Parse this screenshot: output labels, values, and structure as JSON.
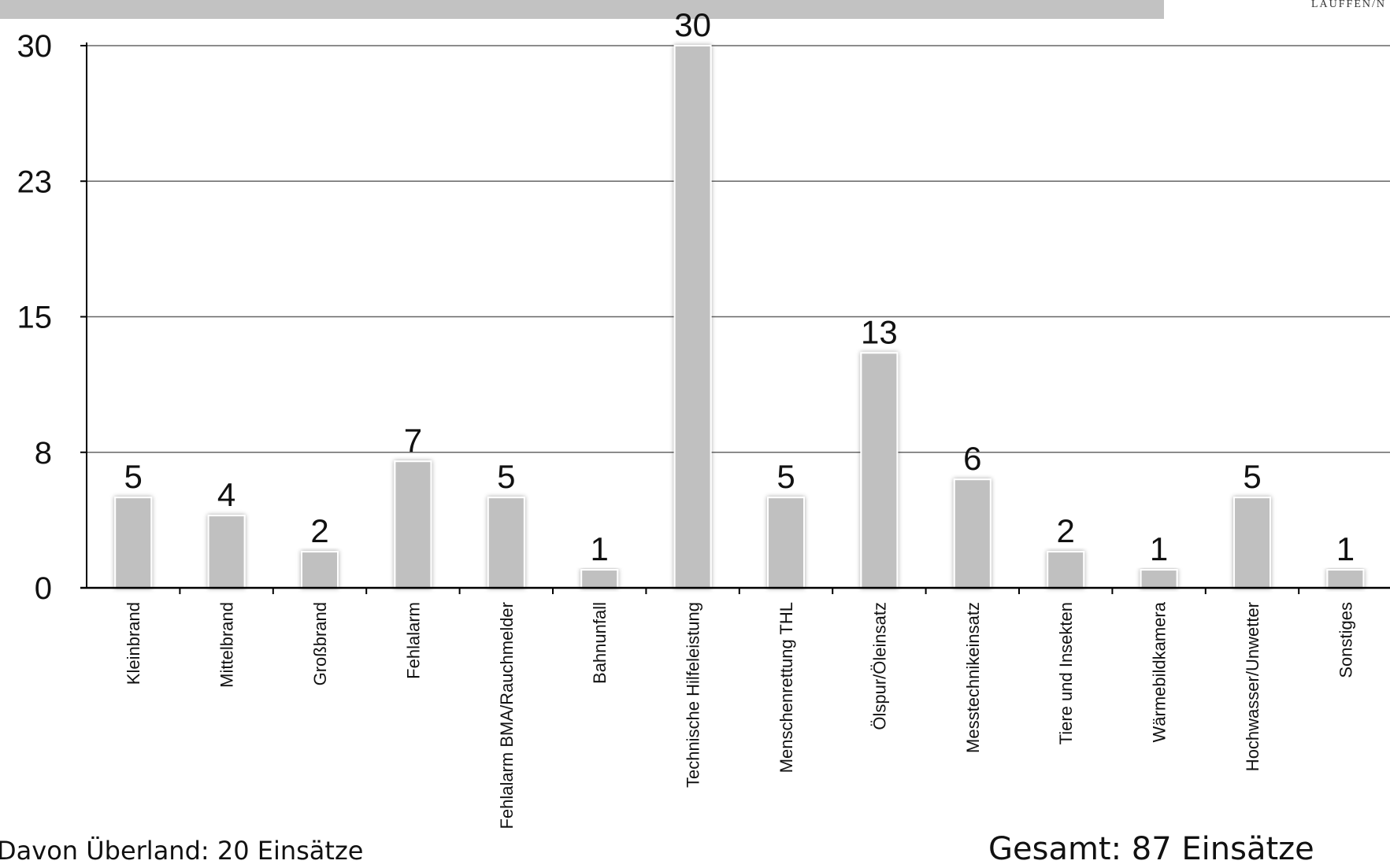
{
  "header": {
    "brand": "LAUFFEN/N"
  },
  "footer": {
    "overland": "Davon Überland: 20 Einsätze",
    "total": "Gesamt: 87 Einsätze"
  },
  "colors": {
    "bar": "#c0c0c0",
    "bar_edge": "#ffffff",
    "grid": "#666666",
    "axis": "#000000",
    "top_bar": "#c2c2c2"
  },
  "chart_data": {
    "type": "bar",
    "categories": [
      "Kleinbrand",
      "Mittelbrand",
      "Großbrand",
      "Fehlalarm",
      "Fehlalarm BMA/Rauchmelder",
      "Bahnunfall",
      "Technische Hilfeleistung",
      "Menschenrettung THL",
      "Ölspur/Öleinsatz",
      "Messtechnikeinsatz",
      "Tiere und Insekten",
      "Wärmebildkamera",
      "Hochwasser/Unwetter",
      "Sonstiges"
    ],
    "values": [
      5,
      4,
      2,
      7,
      5,
      1,
      30,
      5,
      13,
      6,
      2,
      1,
      5,
      1
    ],
    "ylim": [
      0,
      30
    ],
    "yticks": [
      "0",
      "8",
      "15",
      "23",
      "30"
    ],
    "ytick_values": [
      0,
      7.5,
      15,
      22.5,
      30
    ],
    "grid": true,
    "data_labels": true
  }
}
